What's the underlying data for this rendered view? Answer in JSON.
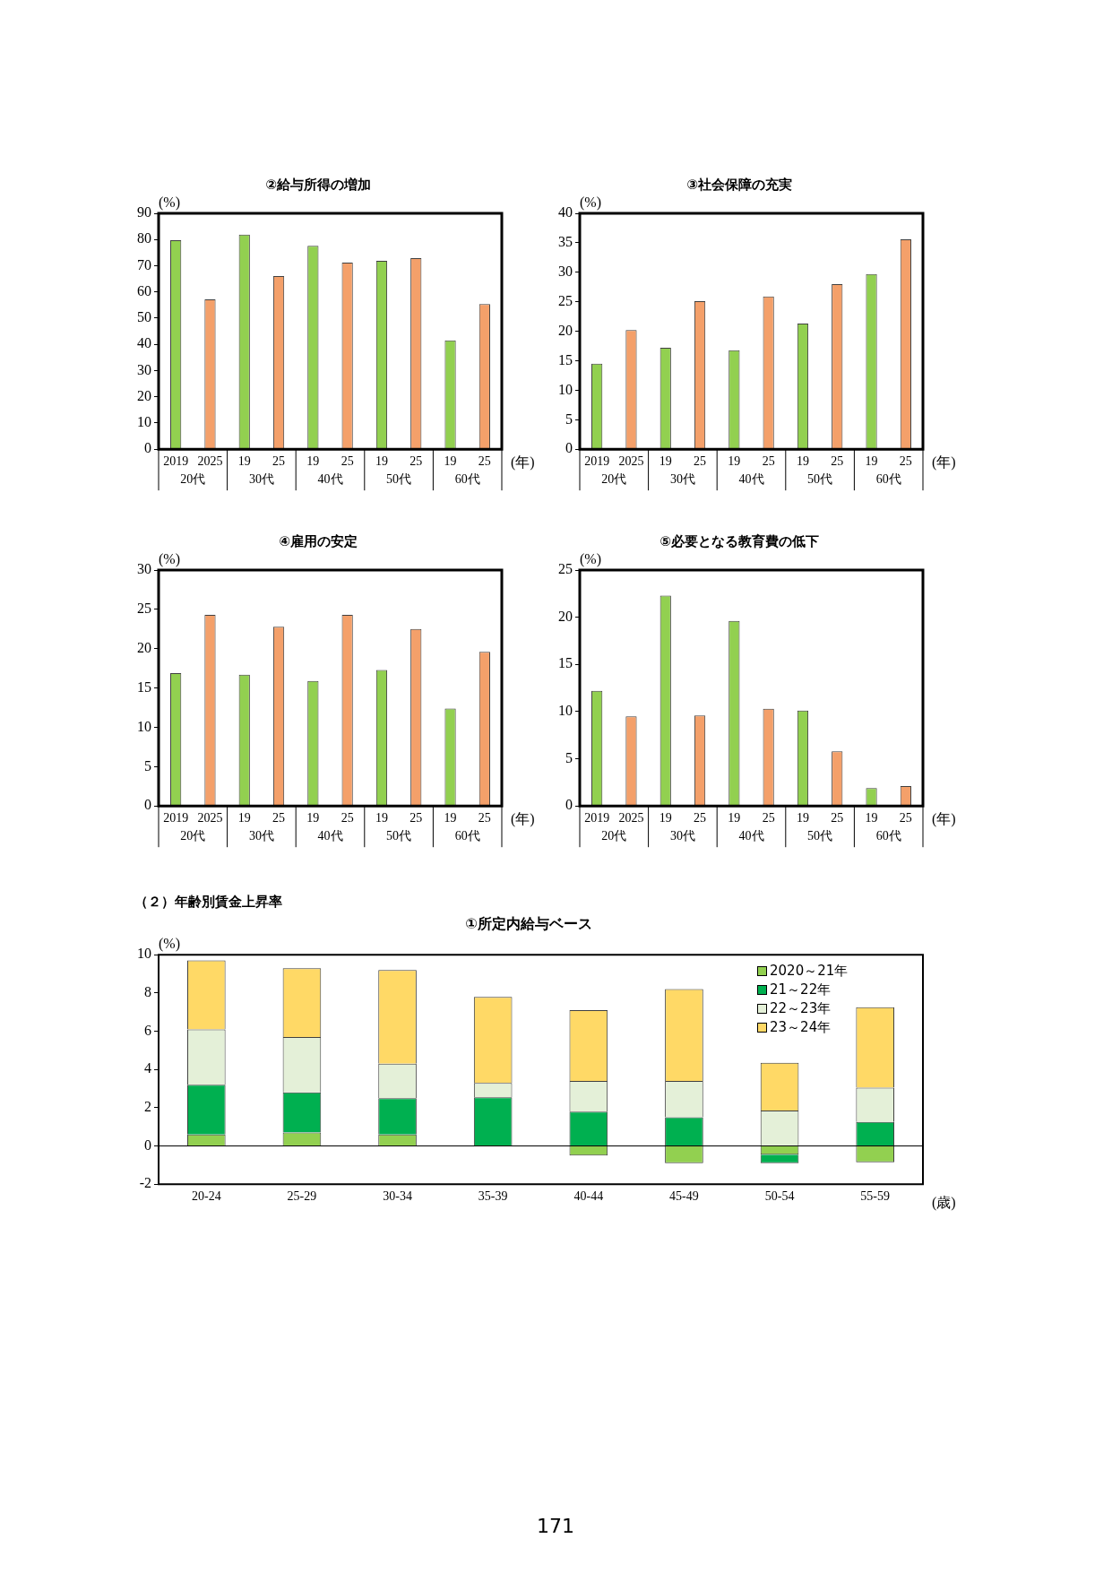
{
  "chart_data": [
    {
      "type": "bar",
      "title": "②給与所得の増加",
      "ylabel": "(%)",
      "xlabel": "(年)",
      "categories": [
        "2019",
        "2025",
        "19",
        "25",
        "19",
        "25",
        "19",
        "25",
        "19",
        "25"
      ],
      "values": [
        79.7,
        57.2,
        81.9,
        66.1,
        77.6,
        71.2,
        71.9,
        72.9,
        41.5,
        55.4
      ],
      "colors": [
        "#92d050",
        "#f4a06a",
        "#92d050",
        "#f4a06a",
        "#92d050",
        "#f4a06a",
        "#92d050",
        "#f4a06a",
        "#92d050",
        "#f4a06a"
      ],
      "ylim": [
        0,
        90
      ],
      "yticks": [
        0,
        10,
        20,
        30,
        40,
        50,
        60,
        70,
        80,
        90
      ],
      "annotations": [
        "20代",
        "30代",
        "40代",
        "50代",
        "60代"
      ]
    },
    {
      "type": "bar",
      "title": "③社会保障の充実",
      "ylabel": "(%)",
      "xlabel": "(年)",
      "categories": [
        "2019",
        "2025",
        "19",
        "25",
        "19",
        "25",
        "19",
        "25",
        "19",
        "25"
      ],
      "values": [
        14.5,
        20.2,
        17.2,
        25.1,
        16.8,
        25.9,
        21.3,
        28.0,
        29.7,
        35.6
      ],
      "colors": [
        "#92d050",
        "#f4a06a",
        "#92d050",
        "#f4a06a",
        "#92d050",
        "#f4a06a",
        "#92d050",
        "#f4a06a",
        "#92d050",
        "#f4a06a"
      ],
      "ylim": [
        0,
        40
      ],
      "yticks": [
        0,
        5,
        10,
        15,
        20,
        25,
        30,
        35,
        40
      ],
      "annotations": [
        "20代",
        "30代",
        "40代",
        "50代",
        "60代"
      ]
    },
    {
      "type": "bar",
      "title": "④雇用の安定",
      "ylabel": "(%)",
      "xlabel": "(年)",
      "categories": [
        "2019",
        "2025",
        "19",
        "25",
        "19",
        "25",
        "19",
        "25",
        "19",
        "25"
      ],
      "values": [
        16.9,
        24.3,
        16.7,
        22.8,
        15.9,
        24.3,
        17.3,
        22.5,
        12.4,
        19.6
      ],
      "colors": [
        "#92d050",
        "#f4a06a",
        "#92d050",
        "#f4a06a",
        "#92d050",
        "#f4a06a",
        "#92d050",
        "#f4a06a",
        "#92d050",
        "#f4a06a"
      ],
      "ylim": [
        0,
        30
      ],
      "yticks": [
        0,
        5,
        10,
        15,
        20,
        25,
        30
      ],
      "annotations": [
        "20代",
        "30代",
        "40代",
        "50代",
        "60代"
      ]
    },
    {
      "type": "bar",
      "title": "⑤必要となる教育費の低下",
      "ylabel": "(%)",
      "xlabel": "(年)",
      "categories": [
        "2019",
        "2025",
        "19",
        "25",
        "19",
        "25",
        "19",
        "25",
        "19",
        "25"
      ],
      "values": [
        12.2,
        9.5,
        22.3,
        9.6,
        19.6,
        10.3,
        10.1,
        5.8,
        1.9,
        2.1
      ],
      "colors": [
        "#92d050",
        "#f4a06a",
        "#92d050",
        "#f4a06a",
        "#92d050",
        "#f4a06a",
        "#92d050",
        "#f4a06a",
        "#92d050",
        "#f4a06a"
      ],
      "ylim": [
        0,
        25
      ],
      "yticks": [
        0,
        5,
        10,
        15,
        20,
        25
      ],
      "annotations": [
        "20代",
        "30代",
        "40代",
        "50代",
        "60代"
      ]
    },
    {
      "type": "bar",
      "stacked": true,
      "title": "（２）年齢別賃金上昇率",
      "subtitle": "①所定内給与ベース",
      "ylabel": "(%)",
      "xlabel": "(歳)",
      "categories": [
        "20-24",
        "25-29",
        "30-34",
        "35-39",
        "40-44",
        "45-49",
        "50-54",
        "55-59"
      ],
      "series": [
        {
          "name": "2020～21年",
          "color": "#92d050",
          "values": [
            0.6,
            0.7,
            0.6,
            null,
            -0.5,
            -0.9,
            -0.45,
            -0.85
          ]
        },
        {
          "name": "21～22年",
          "color": "#00b050",
          "values": [
            2.6,
            2.1,
            1.9,
            2.55,
            1.8,
            1.5,
            -0.45,
            1.25
          ]
        },
        {
          "name": "22～23年",
          "color": "#e4f0d8",
          "values": [
            2.9,
            2.9,
            1.8,
            0.75,
            1.6,
            1.9,
            1.85,
            1.8
          ]
        },
        {
          "name": "23～24年",
          "color": "#ffd966",
          "values": [
            3.6,
            3.6,
            4.9,
            4.5,
            3.7,
            4.8,
            2.5,
            4.2
          ]
        }
      ],
      "ylim": [
        -2,
        10
      ],
      "yticks": [
        -2,
        0,
        2,
        4,
        6,
        8,
        10
      ],
      "legend": "top right",
      "ref_lines": [
        {
          "axis": "y",
          "value": 0,
          "color": "#000000"
        }
      ],
      "annotations": [
        "171"
      ]
    }
  ]
}
